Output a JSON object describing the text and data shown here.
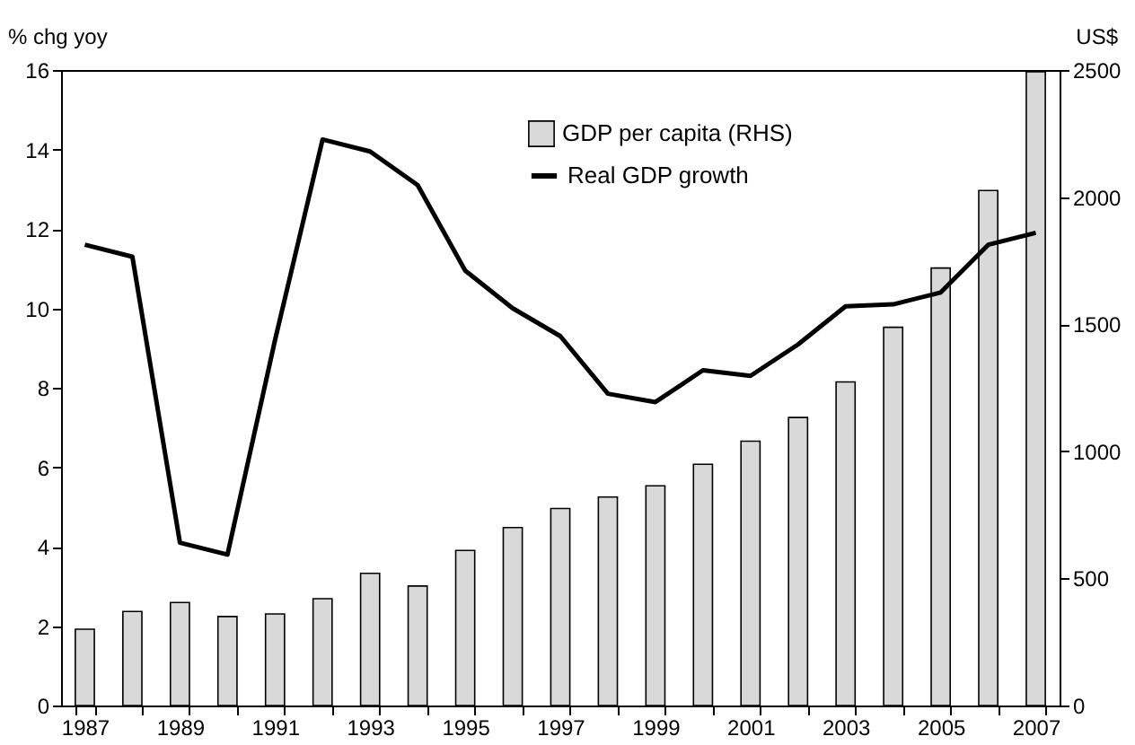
{
  "chart_data": {
    "type": "bar",
    "ylabel": "% chg yoy",
    "y2label": "US$",
    "categories": [
      "1987",
      null,
      "1989",
      null,
      "1991",
      null,
      "1993",
      null,
      "1995",
      null,
      "1997",
      null,
      "1999",
      null,
      "2001",
      null,
      "2003",
      null,
      "2005",
      null,
      "2007"
    ],
    "series": [
      {
        "name": "GDP per capita (RHS)",
        "axis": "y2",
        "color": "#d9d9d9",
        "values": [
          300,
          370,
          405,
          350,
          360,
          420,
          520,
          470,
          610,
          700,
          775,
          820,
          864,
          949,
          1040,
          1133,
          1273,
          1488,
          1721,
          2026,
          2493
        ]
      },
      {
        "name": "Real GDP growth",
        "type": "line",
        "color": "#000000",
        "values": [
          11.6,
          11.3,
          4.1,
          3.8,
          9.2,
          14.25,
          13.95,
          13.1,
          10.95,
          10.0,
          9.3,
          7.85,
          7.64,
          8.44,
          8.3,
          9.09,
          10.05,
          10.1,
          10.4,
          11.6,
          11.9
        ]
      }
    ],
    "ylim": [
      0,
      16
    ],
    "yticks": [
      0,
      2,
      4,
      6,
      8,
      10,
      12,
      14,
      16
    ],
    "y2lim": [
      0,
      2500
    ],
    "y2ticks": [
      0,
      500,
      1000,
      1500,
      2000,
      2500
    ],
    "legend": "top right"
  }
}
